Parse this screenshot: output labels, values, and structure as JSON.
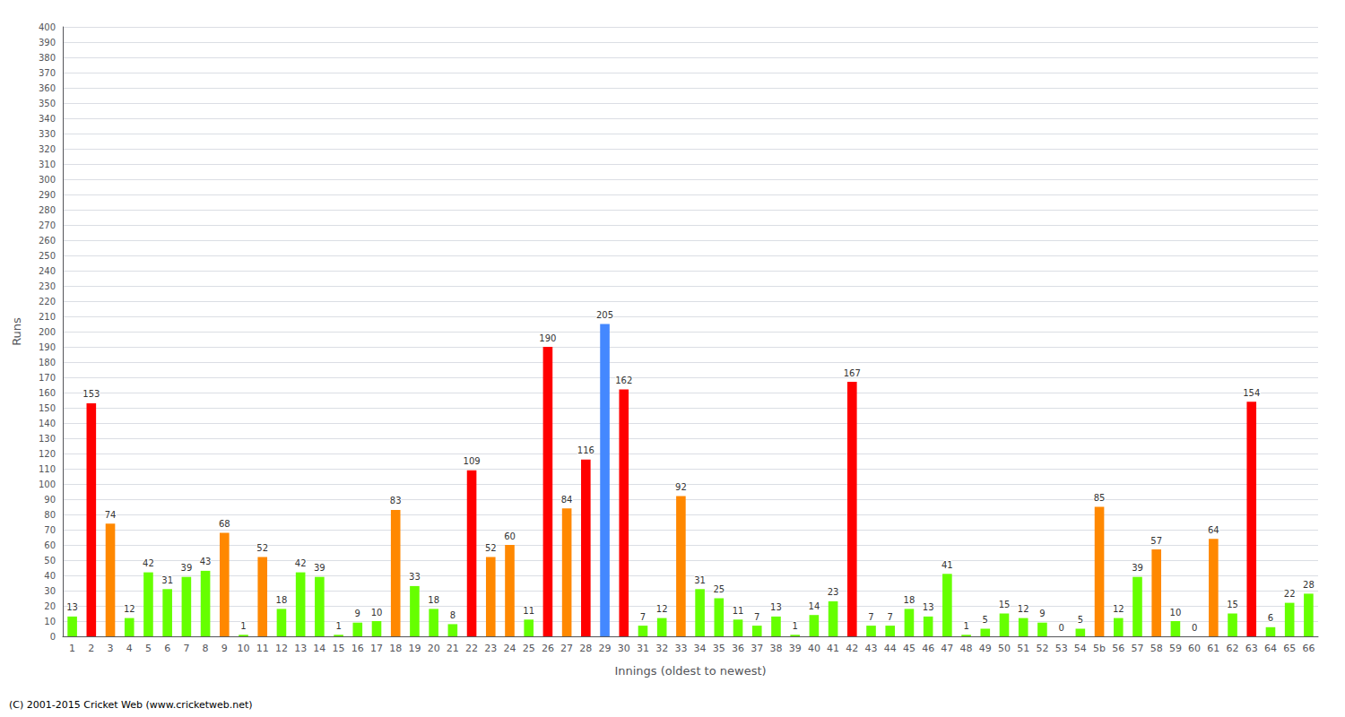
{
  "chart_data": {
    "type": "bar",
    "xlabel": "Innings (oldest to newest)",
    "ylabel": "Runs",
    "categories": [
      "1",
      "2",
      "3",
      "4",
      "5",
      "6",
      "7",
      "8",
      "9",
      "10",
      "11",
      "12",
      "13",
      "14",
      "15",
      "16",
      "17",
      "18",
      "19",
      "20",
      "21",
      "22",
      "23",
      "24",
      "25",
      "26",
      "27",
      "28",
      "29",
      "30",
      "31",
      "32",
      "33",
      "34",
      "35",
      "36",
      "37",
      "38",
      "39",
      "40",
      "41",
      "42",
      "43",
      "44",
      "45",
      "46",
      "47",
      "48",
      "49",
      "50",
      "51",
      "52",
      "53",
      "54",
      "5b",
      "56",
      "57",
      "58",
      "59",
      "60",
      "61",
      "62",
      "63",
      "64",
      "65",
      "66"
    ],
    "values": [
      13,
      153,
      74,
      12,
      42,
      31,
      39,
      43,
      68,
      1,
      52,
      18,
      42,
      39,
      1,
      9,
      10,
      83,
      33,
      18,
      8,
      109,
      52,
      60,
      11,
      190,
      84,
      116,
      205,
      162,
      7,
      12,
      92,
      31,
      25,
      11,
      7,
      13,
      1,
      14,
      23,
      167,
      7,
      7,
      18,
      13,
      41,
      1,
      5,
      15,
      12,
      9,
      0,
      5,
      85,
      12,
      39,
      57,
      10,
      0,
      64,
      15,
      154,
      6,
      22,
      28
    ],
    "colors": [
      "#66ff00",
      "#ff0000",
      "#ff8800",
      "#66ff00",
      "#66ff00",
      "#66ff00",
      "#66ff00",
      "#66ff00",
      "#ff8800",
      "#66ff00",
      "#ff8800",
      "#66ff00",
      "#66ff00",
      "#66ff00",
      "#66ff00",
      "#66ff00",
      "#66ff00",
      "#ff8800",
      "#66ff00",
      "#66ff00",
      "#66ff00",
      "#ff0000",
      "#ff8800",
      "#ff8800",
      "#66ff00",
      "#ff0000",
      "#ff8800",
      "#ff0000",
      "#4488ff",
      "#ff0000",
      "#66ff00",
      "#66ff00",
      "#ff8800",
      "#66ff00",
      "#66ff00",
      "#66ff00",
      "#66ff00",
      "#66ff00",
      "#66ff00",
      "#66ff00",
      "#66ff00",
      "#ff0000",
      "#66ff00",
      "#66ff00",
      "#66ff00",
      "#66ff00",
      "#66ff00",
      "#66ff00",
      "#66ff00",
      "#66ff00",
      "#66ff00",
      "#66ff00",
      "#66ff00",
      "#66ff00",
      "#ff8800",
      "#66ff00",
      "#66ff00",
      "#ff8800",
      "#66ff00",
      "#66ff00",
      "#ff8800",
      "#66ff00",
      "#ff0000",
      "#66ff00",
      "#66ff00",
      "#66ff00"
    ],
    "ylim": [
      0,
      400
    ],
    "yticks": [
      0,
      10,
      20,
      30,
      40,
      50,
      60,
      70,
      80,
      90,
      100,
      110,
      120,
      130,
      140,
      150,
      160,
      170,
      180,
      190,
      200,
      210,
      220,
      230,
      240,
      250,
      260,
      270,
      280,
      290,
      300,
      310,
      320,
      330,
      340,
      350,
      360,
      370,
      380,
      390,
      400
    ],
    "grid": true,
    "data_labels": true,
    "annotations": [
      "(C) 2001-2015 Cricket Web (www.cricketweb.net)"
    ]
  }
}
